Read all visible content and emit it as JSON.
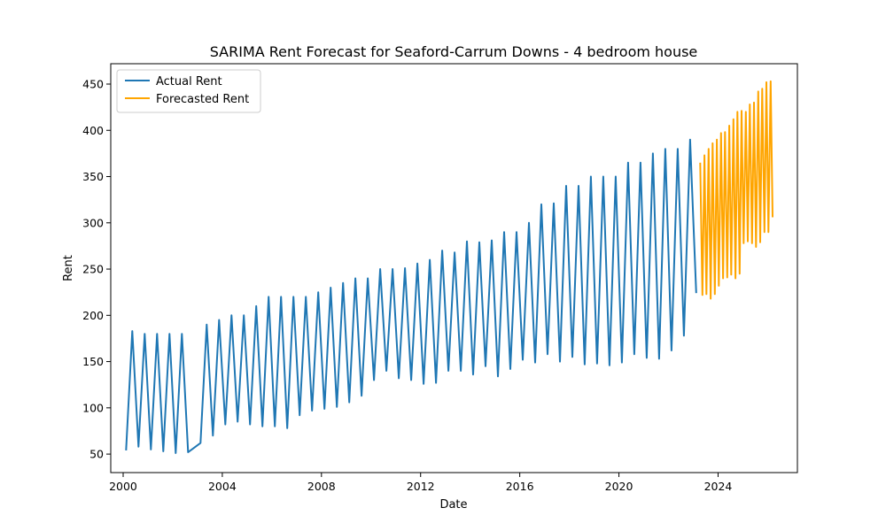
{
  "chart_data": {
    "type": "line",
    "title": "SARIMA Rent Forecast for Seaford-Carrum Downs - 4 bedroom house",
    "xlabel": "Date",
    "ylabel": "Rent",
    "xlim": [
      1999.5,
      2027.2
    ],
    "ylim": [
      30,
      472
    ],
    "xticks": [
      2000,
      2004,
      2008,
      2012,
      2016,
      2020,
      2024
    ],
    "yticks": [
      50,
      100,
      150,
      200,
      250,
      300,
      350,
      400,
      450
    ],
    "grid": false,
    "legend": "upper-left",
    "series": [
      {
        "name": "Actual Rent",
        "color": "#1f77b4",
        "x": [
          2000.12,
          2000.37,
          2000.62,
          2000.87,
          2001.12,
          2001.37,
          2001.62,
          2001.87,
          2002.12,
          2002.37,
          2002.62,
          2003.12,
          2003.37,
          2003.62,
          2003.87,
          2004.12,
          2004.37,
          2004.62,
          2004.87,
          2005.12,
          2005.37,
          2005.62,
          2005.87,
          2006.12,
          2006.37,
          2006.62,
          2006.87,
          2007.12,
          2007.37,
          2007.62,
          2007.87,
          2008.12,
          2008.37,
          2008.62,
          2008.87,
          2009.12,
          2009.37,
          2009.62,
          2009.87,
          2010.12,
          2010.37,
          2010.62,
          2010.87,
          2011.12,
          2011.37,
          2011.62,
          2011.87,
          2012.12,
          2012.37,
          2012.62,
          2012.87,
          2013.12,
          2013.37,
          2013.62,
          2013.87,
          2014.12,
          2014.37,
          2014.62,
          2014.87,
          2015.12,
          2015.37,
          2015.62,
          2015.87,
          2016.12,
          2016.37,
          2016.62,
          2016.87,
          2017.12,
          2017.37,
          2017.62,
          2017.87,
          2018.12,
          2018.37,
          2018.62,
          2018.87,
          2019.12,
          2019.37,
          2019.62,
          2019.87,
          2020.12,
          2020.37,
          2020.62,
          2020.87,
          2021.12,
          2021.37,
          2021.62,
          2021.87,
          2022.12,
          2022.37,
          2022.62,
          2022.87,
          2023.12
        ],
        "y": [
          54,
          183,
          58,
          180,
          55,
          180,
          53,
          180,
          51,
          180,
          52,
          62,
          190,
          70,
          195,
          82,
          200,
          85,
          200,
          82,
          210,
          80,
          220,
          80,
          220,
          78,
          220,
          92,
          220,
          97,
          225,
          99,
          230,
          101,
          235,
          106,
          240,
          113,
          240,
          130,
          250,
          140,
          250,
          132,
          251,
          130,
          256,
          126,
          260,
          127,
          270,
          140,
          268,
          140,
          280,
          136,
          279,
          145,
          281,
          134,
          290,
          142,
          290,
          152,
          300,
          149,
          320,
          158,
          321,
          150,
          340,
          155,
          340,
          147,
          350,
          148,
          350,
          146,
          350,
          149,
          365,
          158,
          365,
          154,
          375,
          153,
          380,
          162,
          380,
          178,
          390,
          224
        ]
      },
      {
        "name": "Forecasted Rent",
        "color": "#ffa500",
        "x": [
          2023.28,
          2023.37,
          2023.45,
          2023.53,
          2023.62,
          2023.7,
          2023.78,
          2023.87,
          2023.95,
          2024.03,
          2024.12,
          2024.2,
          2024.28,
          2024.37,
          2024.45,
          2024.53,
          2024.62,
          2024.7,
          2024.78,
          2024.87,
          2024.95,
          2025.03,
          2025.12,
          2025.2,
          2025.28,
          2025.37,
          2025.45,
          2025.53,
          2025.62,
          2025.7,
          2025.78,
          2025.87,
          2025.95,
          2026.03,
          2026.12,
          2026.2
        ],
        "y": [
          365,
          222,
          373,
          223,
          380,
          218,
          386,
          223,
          390,
          232,
          397,
          240,
          398,
          241,
          405,
          244,
          412,
          240,
          420,
          245,
          421,
          278,
          420,
          280,
          428,
          278,
          430,
          274,
          442,
          279,
          445,
          290,
          452,
          290,
          453,
          306
        ]
      }
    ]
  }
}
